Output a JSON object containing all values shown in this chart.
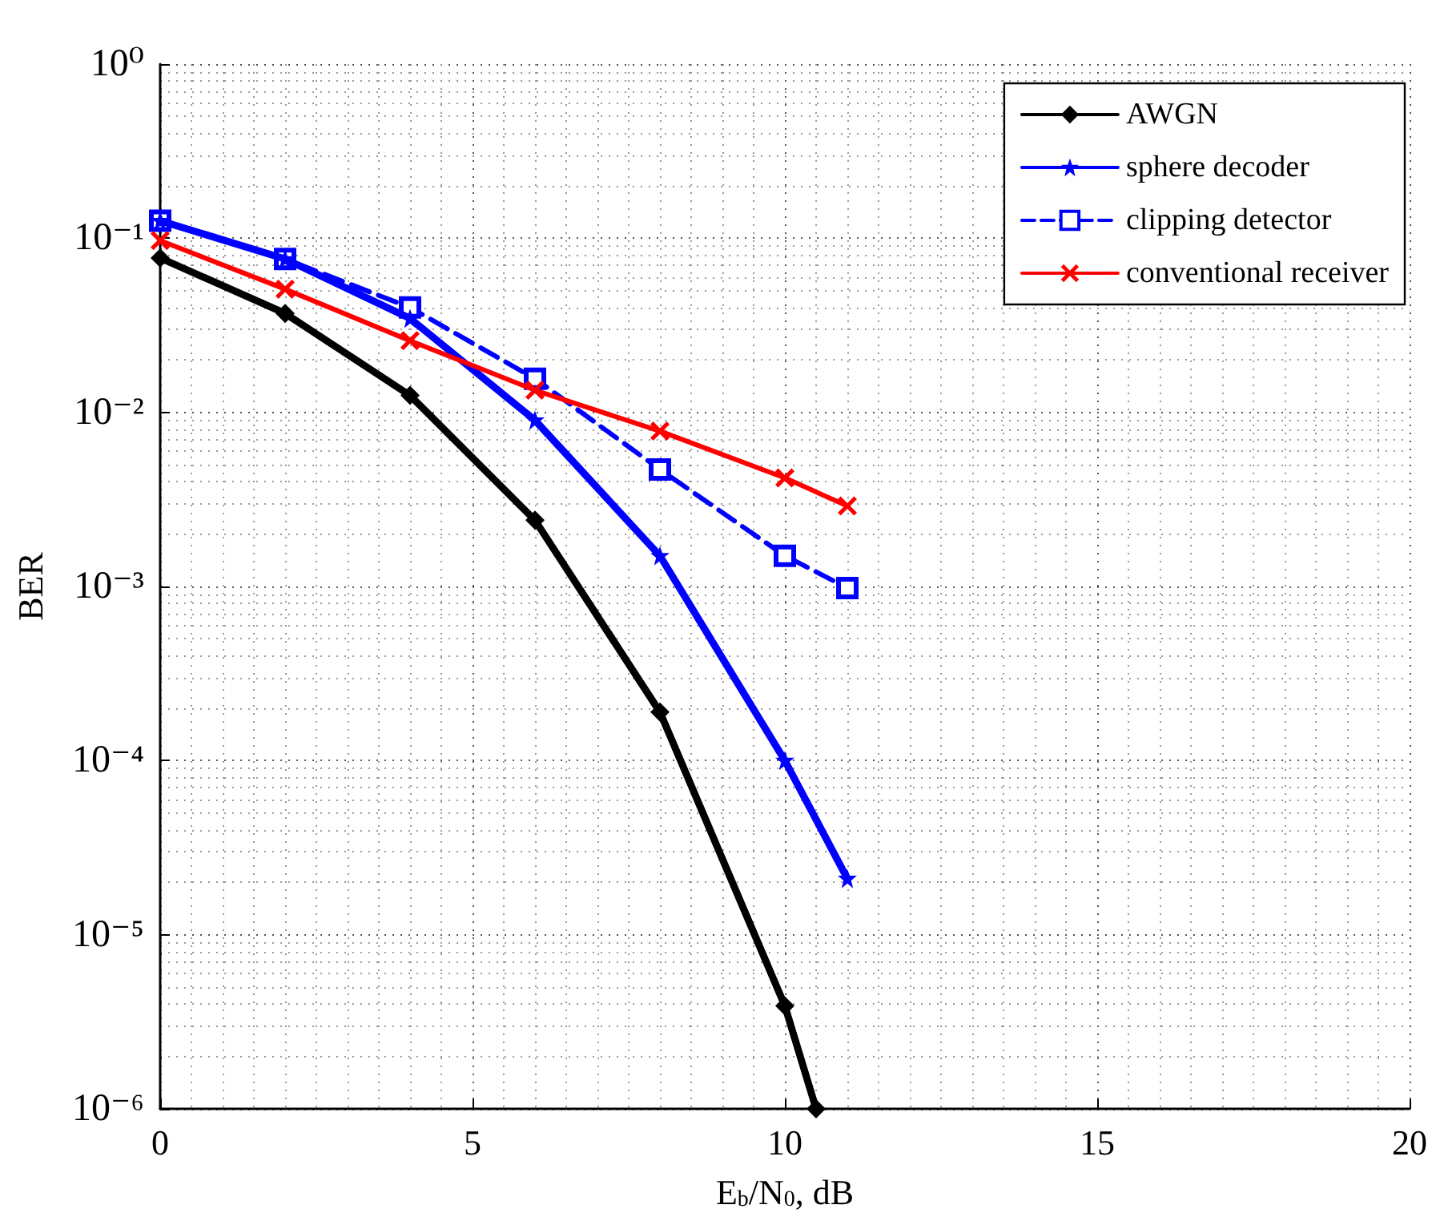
{
  "chart_data": {
    "type": "line",
    "xlabel": "E$_{b}$/N$_{0}$, dB",
    "ylabel": "BER",
    "log": "y",
    "x": [
      0,
      2,
      4,
      6,
      8,
      10,
      11
    ],
    "series": [
      {
        "name": "AWGN",
        "color": "#000000",
        "marker": "diamond",
        "line_style": "solid",
        "x": [
          0,
          2,
          4,
          6,
          8,
          10,
          10.5
        ],
        "values": [
          0.077,
          0.037,
          0.0125,
          0.0024,
          0.00019,
          3.9e-06,
          1e-06
        ]
      },
      {
        "name": "sphere decoder",
        "color": "#0000ff",
        "marker": "star",
        "line_style": "solid",
        "values": [
          0.126,
          0.076,
          0.0346,
          0.009,
          0.0015,
          0.0001,
          2.1e-05
        ]
      },
      {
        "name": "clipping detector",
        "color": "#0000ff",
        "marker": "square",
        "line_style": "dashed",
        "values": [
          0.126,
          0.076,
          0.04,
          0.0156,
          0.0047,
          0.0015,
          0.00098
        ]
      },
      {
        "name": "conventional receiver",
        "color": "#ff0000",
        "marker": "cross",
        "line_style": "solid",
        "values": [
          0.097,
          0.051,
          0.0258,
          0.0134,
          0.0078,
          0.0042,
          0.0029
        ]
      }
    ],
    "xlim": [
      0,
      20
    ],
    "xticks": [
      0,
      5,
      10,
      15,
      20
    ],
    "ylim": [
      1e-06,
      1
    ],
    "yticks": [
      {
        "value": 1e-06,
        "label": "10⁻⁶"
      },
      {
        "value": 1e-05,
        "label": "10⁻⁵"
      },
      {
        "value": 0.0001,
        "label": "10⁻⁴"
      },
      {
        "value": 0.001,
        "label": "10⁻³"
      },
      {
        "value": 0.01,
        "label": "10⁻²"
      },
      {
        "value": 0.1,
        "label": "10⁻¹"
      },
      {
        "value": 1,
        "label": "10⁰"
      }
    ],
    "grid": true,
    "legend": "top right"
  }
}
